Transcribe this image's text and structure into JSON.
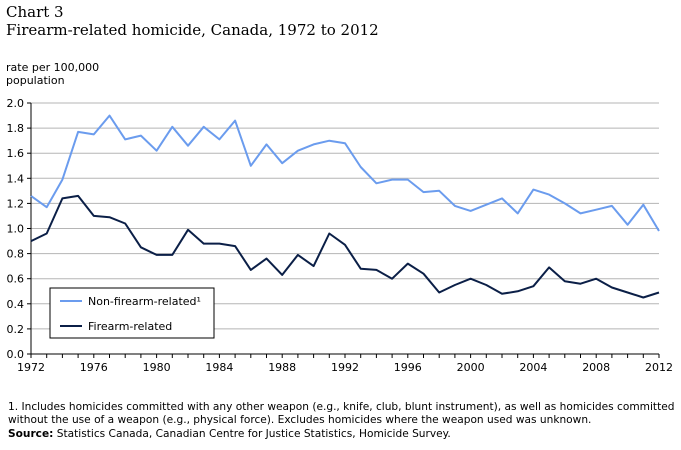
{
  "header": {
    "chart_number": "Chart 3",
    "title": "Firearm-related homicide, Canada, 1972 to 2012",
    "unit_label": "rate per 100,000 population"
  },
  "footer": {
    "footnote": "1. Includes homicides committed with any other weapon (e.g., knife, club, blunt instrument), as well as homicides committed without the use of a weapon (e.g., physical force). Excludes homicides where the weapon used was unknown.",
    "source_label": "Source:",
    "source_text": "Statistics Canada, Canadian Centre for Justice Statistics, Homicide Survey."
  },
  "colors": {
    "non_firearm": "#6b9cee",
    "firearm": "#0b1f47",
    "grid": "#b5b5b5",
    "axis": "#000000"
  },
  "chart_data": {
    "type": "line",
    "title": "Firearm-related homicide, Canada, 1972 to 2012",
    "xlabel": "",
    "ylabel": "rate per 100,000 population",
    "xlim": [
      1972,
      2012
    ],
    "ylim": [
      0,
      2.0
    ],
    "y_ticks": [
      "0.0",
      "0.2",
      "0.4",
      "0.6",
      "0.8",
      "1.0",
      "1.2",
      "1.4",
      "1.6",
      "1.8",
      "2.0"
    ],
    "y_tick_values": [
      0,
      0.2,
      0.4,
      0.6,
      0.8,
      1.0,
      1.2,
      1.4,
      1.6,
      1.8,
      2.0
    ],
    "x_ticks": [
      "1972",
      "1976",
      "1980",
      "1984",
      "1988",
      "1992",
      "1996",
      "2000",
      "2004",
      "2008",
      "2012"
    ],
    "x_tick_values": [
      1972,
      1976,
      1980,
      1984,
      1988,
      1992,
      1996,
      2000,
      2004,
      2008,
      2012
    ],
    "grid": true,
    "legend_position": "bottom-left",
    "x": [
      1972,
      1973,
      1974,
      1975,
      1976,
      1977,
      1978,
      1979,
      1980,
      1981,
      1982,
      1983,
      1984,
      1985,
      1986,
      1987,
      1988,
      1989,
      1990,
      1991,
      1992,
      1993,
      1994,
      1995,
      1996,
      1997,
      1998,
      1999,
      2000,
      2001,
      2002,
      2003,
      2004,
      2005,
      2006,
      2007,
      2008,
      2009,
      2010,
      2011,
      2012
    ],
    "series": [
      {
        "name": "Non-firearm-related¹",
        "key": "non_firearm",
        "values": [
          1.26,
          1.17,
          1.39,
          1.77,
          1.75,
          1.9,
          1.71,
          1.74,
          1.62,
          1.81,
          1.66,
          1.81,
          1.71,
          1.86,
          1.5,
          1.67,
          1.52,
          1.62,
          1.67,
          1.7,
          1.68,
          1.49,
          1.36,
          1.39,
          1.39,
          1.29,
          1.3,
          1.18,
          1.14,
          1.19,
          1.24,
          1.12,
          1.31,
          1.27,
          1.2,
          1.12,
          1.15,
          1.18,
          1.03,
          1.19,
          0.98
        ]
      },
      {
        "name": "Firearm-related",
        "key": "firearm",
        "values": [
          0.9,
          0.96,
          1.24,
          1.26,
          1.1,
          1.09,
          1.04,
          0.85,
          0.79,
          0.79,
          0.99,
          0.88,
          0.88,
          0.86,
          0.67,
          0.76,
          0.63,
          0.79,
          0.7,
          0.96,
          0.87,
          0.68,
          0.67,
          0.6,
          0.72,
          0.64,
          0.49,
          0.55,
          0.6,
          0.55,
          0.48,
          0.5,
          0.54,
          0.69,
          0.58,
          0.56,
          0.6,
          0.53,
          0.49,
          0.45,
          0.49
        ]
      }
    ]
  }
}
